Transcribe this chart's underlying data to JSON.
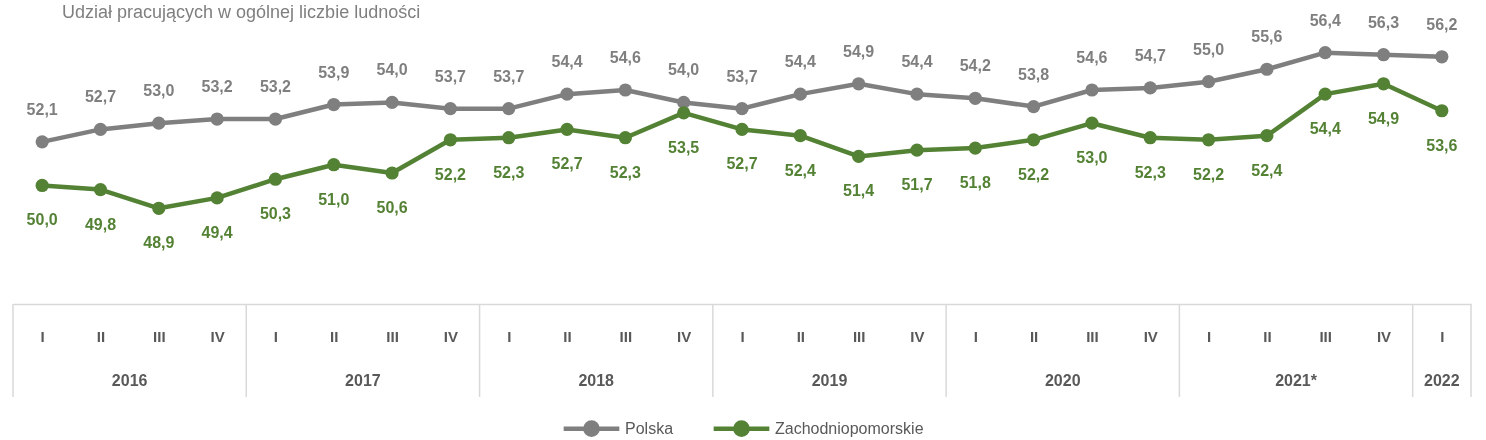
{
  "chart_data": {
    "type": "line",
    "title": "Udział pracujących w ogólnej liczbie ludności",
    "categories": [
      "I",
      "II",
      "III",
      "IV",
      "I",
      "II",
      "III",
      "IV",
      "I",
      "II",
      "III",
      "IV",
      "I",
      "II",
      "III",
      "IV",
      "I",
      "II",
      "III",
      "IV",
      "I",
      "II",
      "III",
      "IV",
      "I"
    ],
    "series": [
      {
        "name": "Polska",
        "color": "#7f7f7f",
        "values": [
          52.1,
          52.7,
          53.0,
          53.2,
          53.2,
          53.9,
          54.0,
          53.7,
          53.7,
          54.4,
          54.6,
          54.0,
          53.7,
          54.4,
          54.9,
          54.4,
          54.2,
          53.8,
          54.6,
          54.7,
          55.0,
          55.6,
          56.4,
          56.3,
          56.2
        ],
        "value_labels": [
          "52,1",
          "52,7",
          "53,0",
          "53,2",
          "53,2",
          "53,9",
          "54,0",
          "53,7",
          "53,7",
          "54,4",
          "54,6",
          "54,0",
          "53,7",
          "54,4",
          "54,9",
          "54,4",
          "54,2",
          "53,8",
          "54,6",
          "54,7",
          "55,0",
          "55,6",
          "56,4",
          "56,3",
          "56,2"
        ]
      },
      {
        "name": "Zachodniopomorskie",
        "color": "#548235",
        "values": [
          50.0,
          49.8,
          48.9,
          49.4,
          50.3,
          51.0,
          50.6,
          52.2,
          52.3,
          52.7,
          52.3,
          53.5,
          52.7,
          52.4,
          51.4,
          51.7,
          51.8,
          52.2,
          53.0,
          52.3,
          52.2,
          52.4,
          54.4,
          54.9,
          53.6
        ],
        "value_labels": [
          "50,0",
          "49,8",
          "48,9",
          "49,4",
          "50,3",
          "51,0",
          "50,6",
          "52,2",
          "52,3",
          "52,7",
          "52,3",
          "53,5",
          "52,7",
          "52,4",
          "51,4",
          "51,7",
          "51,8",
          "52,2",
          "53,0",
          "52,3",
          "52,2",
          "52,4",
          "54,4",
          "54,9",
          "53,6"
        ]
      }
    ],
    "annotations": [
      "2016",
      "2017",
      "2018",
      "2019",
      "2020",
      "2021*",
      "2022"
    ],
    "legend": "bottom",
    "marker": "circle",
    "line_style": "solid",
    "tick_labels": "x"
  }
}
